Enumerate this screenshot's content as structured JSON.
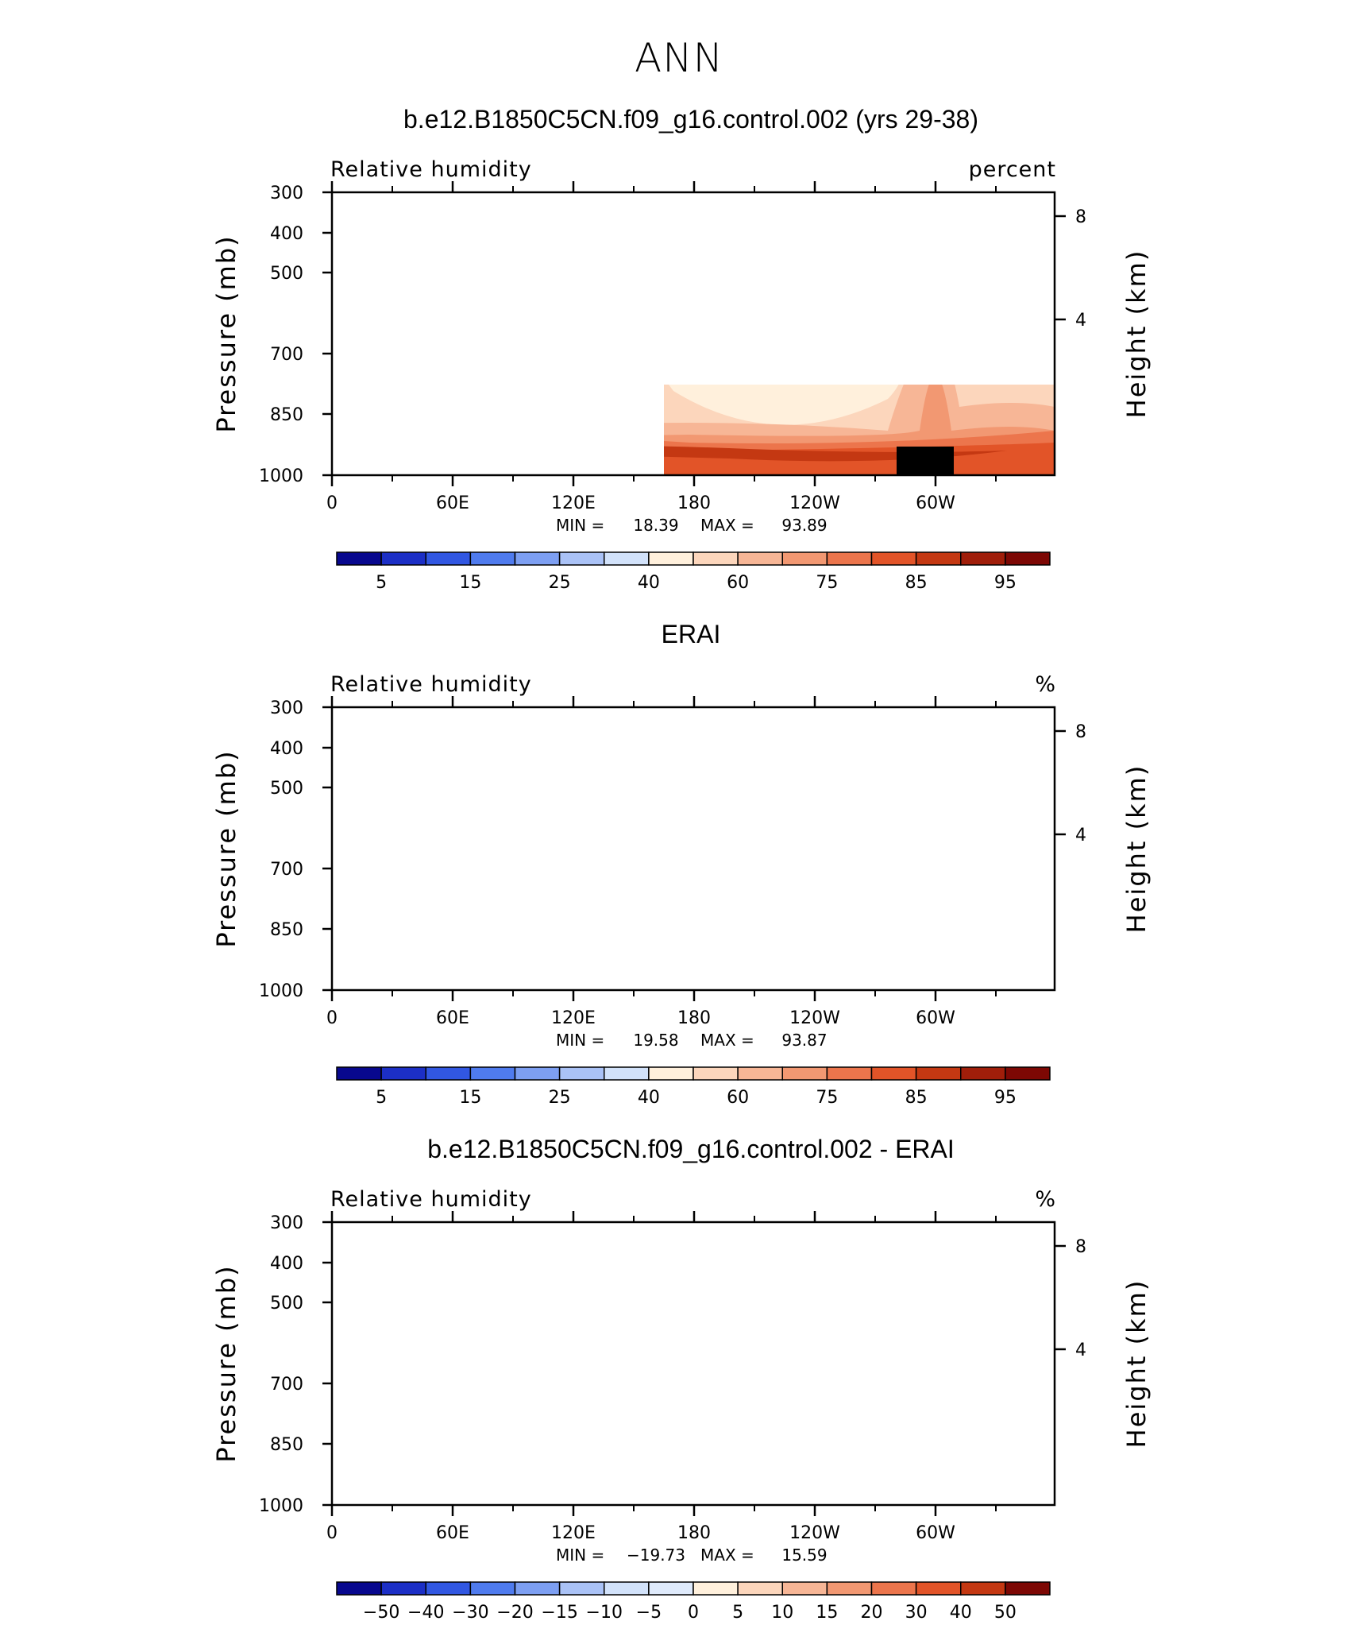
{
  "figure": {
    "title": "ANN"
  },
  "chart_data": [
    {
      "type": "heatmap",
      "title": "b.e12.B1850C5CN.f09_g16.control.002 (yrs 29-38)",
      "subtitle_left": "Relative humidity",
      "subtitle_right": "percent",
      "ylabel": "Pressure (mb)",
      "y2label": "Height (km)",
      "xticks": [
        "0",
        "60E",
        "120E",
        "180",
        "120W",
        "60W"
      ],
      "yticks": [
        "300",
        "400",
        "500",
        "700",
        "850",
        "1000"
      ],
      "y2ticks": [
        "8",
        "4"
      ],
      "stats": {
        "min_label": "MIN =",
        "min": "18.39",
        "max_label": "MAX =",
        "max": "93.89"
      },
      "colorbar": {
        "labels": [
          "5",
          "15",
          "25",
          "40",
          "60",
          "75",
          "85",
          "95"
        ],
        "colors": [
          "#08088e",
          "#1c2fc6",
          "#3157e2",
          "#4f7bee",
          "#7d9ff2",
          "#aac2f6",
          "#d2e2fa",
          "#fff0dc",
          "#fcd6bc",
          "#f7b696",
          "#f29872",
          "#ec754c",
          "#e25428",
          "#c43812",
          "#a01e0a",
          "#7d0804"
        ]
      }
    },
    {
      "type": "heatmap",
      "title": "ERAI",
      "subtitle_left": "Relative humidity",
      "subtitle_right": "%",
      "ylabel": "Pressure (mb)",
      "y2label": "Height (km)",
      "xticks": [
        "0",
        "60E",
        "120E",
        "180",
        "120W",
        "60W"
      ],
      "yticks": [
        "300",
        "400",
        "500",
        "700",
        "850",
        "1000"
      ],
      "y2ticks": [
        "8",
        "4"
      ],
      "stats": {
        "min_label": "MIN =",
        "min": "19.58",
        "max_label": "MAX =",
        "max": "93.87"
      },
      "colorbar": {
        "labels": [
          "5",
          "15",
          "25",
          "40",
          "60",
          "75",
          "85",
          "95"
        ],
        "colors": [
          "#08088e",
          "#1c2fc6",
          "#3157e2",
          "#4f7bee",
          "#7d9ff2",
          "#aac2f6",
          "#d2e2fa",
          "#fff0dc",
          "#fcd6bc",
          "#f7b696",
          "#f29872",
          "#ec754c",
          "#e25428",
          "#c43812",
          "#a01e0a",
          "#7d0804"
        ]
      }
    },
    {
      "type": "heatmap",
      "title": "b.e12.B1850C5CN.f09_g16.control.002 - ERAI",
      "subtitle_left": "Relative humidity",
      "subtitle_right": "%",
      "ylabel": "Pressure (mb)",
      "y2label": "Height (km)",
      "xticks": [
        "0",
        "60E",
        "120E",
        "180",
        "120W",
        "60W"
      ],
      "yticks": [
        "300",
        "400",
        "500",
        "700",
        "850",
        "1000"
      ],
      "y2ticks": [
        "8",
        "4"
      ],
      "stats": {
        "min_label": "MIN =",
        "min": "−19.73",
        "max_label": "MAX =",
        "max": "15.59"
      },
      "colorbar": {
        "labels": [
          "−50",
          "−40",
          "−30",
          "−20",
          "−15",
          "−10",
          "−5",
          "0",
          "5",
          "10",
          "15",
          "20",
          "30",
          "40",
          "50"
        ],
        "colors": [
          "#08088e",
          "#1c2fc6",
          "#3157e2",
          "#4f7bee",
          "#7d9ff2",
          "#aac2f6",
          "#d2e2fa",
          "#dfeafb",
          "#fff0dc",
          "#fcd6bc",
          "#f7b696",
          "#f29872",
          "#ec754c",
          "#e25428",
          "#c43812",
          "#7d0804"
        ]
      }
    }
  ]
}
